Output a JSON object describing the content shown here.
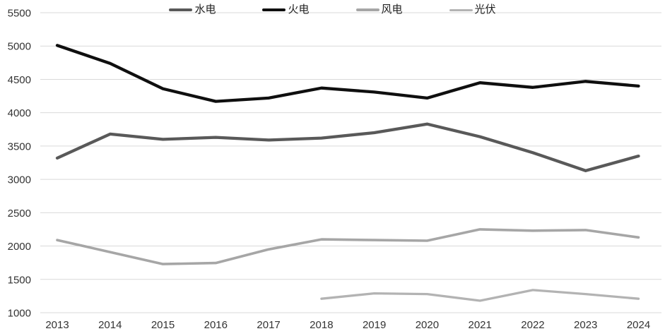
{
  "chart_data": {
    "type": "line",
    "title": "",
    "xlabel": "",
    "ylabel": "",
    "categories": [
      "2013",
      "2014",
      "2015",
      "2016",
      "2017",
      "2018",
      "2019",
      "2020",
      "2021",
      "2022",
      "2023",
      "2024"
    ],
    "series": [
      {
        "key": "hydro",
        "name": "水电",
        "color": "#595959",
        "stroke_width": 4.3,
        "values": [
          3320,
          3680,
          3600,
          3630,
          3590,
          3620,
          3700,
          3830,
          3640,
          3400,
          3130,
          3350
        ]
      },
      {
        "key": "thermal",
        "name": "火电",
        "color": "#0f0f0f",
        "stroke_width": 4.3,
        "values": [
          5010,
          4740,
          4360,
          4170,
          4220,
          4370,
          4310,
          4220,
          4450,
          4380,
          4470,
          4400
        ]
      },
      {
        "key": "wind",
        "name": "风电",
        "color": "#a6a6a6",
        "stroke_width": 3.6,
        "values": [
          2090,
          1910,
          1730,
          1745,
          1950,
          2100,
          2090,
          2080,
          2250,
          2230,
          2240,
          2130
        ]
      },
      {
        "key": "solar",
        "name": "光伏",
        "color": "#b3b3b3",
        "stroke_width": 3.3,
        "values": [
          null,
          null,
          null,
          null,
          null,
          1210,
          1290,
          1280,
          1180,
          1340,
          1280,
          1210
        ]
      }
    ],
    "ylim": [
      1000,
      5500
    ],
    "y_tick_step": 500,
    "y_ticks": [
      1000,
      1500,
      2000,
      2500,
      3000,
      3500,
      4000,
      4500,
      5000,
      5500
    ],
    "grid": "horizontal",
    "gridline_color": "#d9d9d9",
    "axis_text_color": "#333333",
    "legend_position": "top",
    "legend_labels": [
      "水电",
      "火电",
      "风电",
      "光伏"
    ]
  }
}
